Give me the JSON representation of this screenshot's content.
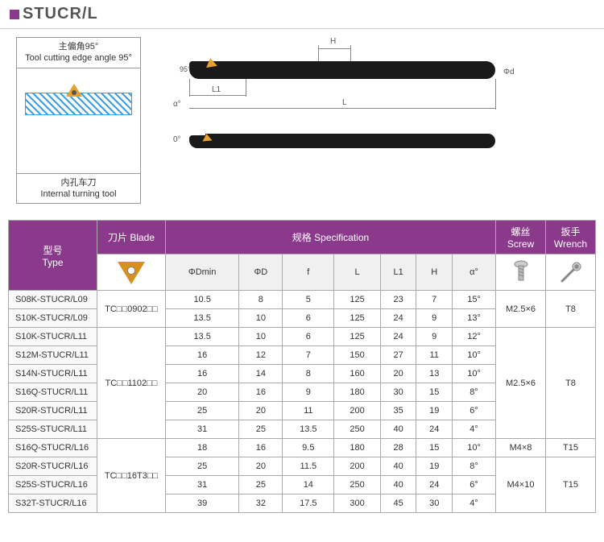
{
  "title": "STUCR/L",
  "diagram": {
    "head_cn": "主偏角95°",
    "head_en": "Tool cutting edge angle 95°",
    "foot_cn": "内孔车刀",
    "foot_en": "Internal turning tool"
  },
  "labels": {
    "angle95": "95°",
    "H": "H",
    "L": "L",
    "L1": "L1",
    "phiD": "ΦD",
    "phid": "Φd",
    "alpha": "α°",
    "zero": "0°"
  },
  "headers": {
    "type_cn": "型号",
    "type_en": "Type",
    "blade_cn": "刀片",
    "blade_en": "Blade",
    "spec_cn": "规格",
    "spec_en": "Specification",
    "screw_cn": "螺丝",
    "screw_en": "Screw",
    "wrench_cn": "扳手",
    "wrench_en": "Wrench",
    "cols": [
      "ΦDmin",
      "ΦD",
      "f",
      "L",
      "L1",
      "H",
      "α°"
    ]
  },
  "blades": [
    "TC□□0902□□",
    "TC□□1102□□",
    "TC□□16T3□□"
  ],
  "screws": [
    "M2.5×6",
    "M2.5×6",
    "M4×8",
    "M4×10"
  ],
  "wrenches": [
    "T8",
    "T8",
    "T15",
    "T15"
  ],
  "rows": [
    {
      "type": "S08K-STUCR/L09",
      "d": [
        "10.5",
        "8",
        "5",
        "125",
        "23",
        "7",
        "15°"
      ]
    },
    {
      "type": "S10K-STUCR/L09",
      "d": [
        "13.5",
        "10",
        "6",
        "125",
        "24",
        "9",
        "13°"
      ]
    },
    {
      "type": "S10K-STUCR/L11",
      "d": [
        "13.5",
        "10",
        "6",
        "125",
        "24",
        "9",
        "12°"
      ]
    },
    {
      "type": "S12M-STUCR/L11",
      "d": [
        "16",
        "12",
        "7",
        "150",
        "27",
        "11",
        "10°"
      ]
    },
    {
      "type": "S14N-STUCR/L11",
      "d": [
        "16",
        "14",
        "8",
        "160",
        "20",
        "13",
        "10°"
      ]
    },
    {
      "type": "S16Q-STUCR/L11",
      "d": [
        "20",
        "16",
        "9",
        "180",
        "30",
        "15",
        "8°"
      ]
    },
    {
      "type": "S20R-STUCR/L11",
      "d": [
        "25",
        "20",
        "11",
        "200",
        "35",
        "19",
        "6°"
      ]
    },
    {
      "type": "S25S-STUCR/L11",
      "d": [
        "31",
        "25",
        "13.5",
        "250",
        "40",
        "24",
        "4°"
      ]
    },
    {
      "type": "S16Q-STUCR/L16",
      "d": [
        "18",
        "16",
        "9.5",
        "180",
        "28",
        "15",
        "10°"
      ]
    },
    {
      "type": "S20R-STUCR/L16",
      "d": [
        "25",
        "20",
        "11.5",
        "200",
        "40",
        "19",
        "8°"
      ]
    },
    {
      "type": "S25S-STUCR/L16",
      "d": [
        "31",
        "25",
        "14",
        "250",
        "40",
        "24",
        "6°"
      ]
    },
    {
      "type": "S32T-STUCR/L16",
      "d": [
        "39",
        "32",
        "17.5",
        "300",
        "45",
        "30",
        "4°"
      ]
    }
  ],
  "colors": {
    "purple": "#8b3a8b",
    "orange": "#e8a030",
    "blue": "#3aa0e8",
    "black": "#1a1a1a",
    "border": "#aaaaaa"
  }
}
